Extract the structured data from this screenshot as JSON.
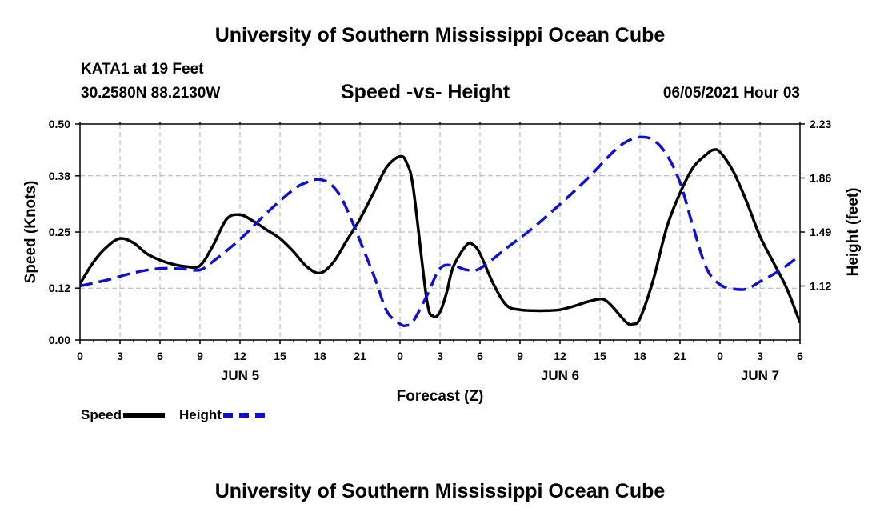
{
  "header": {
    "top_title": "University of Southern Mississippi Ocean Cube",
    "station_name": "KATA1 at 19 Feet",
    "station_coords": "30.2580N  88.2130W",
    "chart_title": "Speed -vs- Height",
    "date": "06/05/2021 Hour 03"
  },
  "footer": {
    "bottom_title": "University of Southern Mississippi Ocean Cube"
  },
  "legend": {
    "speed_label": "Speed",
    "height_label": "Height"
  },
  "colors": {
    "speed": "#000000",
    "height": "#1010d0",
    "grid": "#b0b0b0"
  },
  "chart_data": {
    "type": "line",
    "title": "Speed -vs- Height",
    "xlabel": "Forecast (Z)",
    "ylabel": "Speed (Knots)",
    "y2label": "Height (feet)",
    "xlim": [
      0,
      54
    ],
    "ylim": [
      0,
      0.5
    ],
    "y2lim": [
      0.75,
      2.23
    ],
    "y_ticks": [
      "0.00",
      "0.12",
      "0.25",
      "0.38",
      "0.50"
    ],
    "y2_ticks": [
      "1.12",
      "1.49",
      "1.86",
      "2.23"
    ],
    "y2_tick_values": [
      1.12,
      1.49,
      1.86,
      2.23
    ],
    "x_ticks": [
      {
        "x": 0,
        "label": "0"
      },
      {
        "x": 3,
        "label": "3"
      },
      {
        "x": 6,
        "label": "6"
      },
      {
        "x": 9,
        "label": "9"
      },
      {
        "x": 12,
        "label": "12"
      },
      {
        "x": 15,
        "label": "15"
      },
      {
        "x": 18,
        "label": "18"
      },
      {
        "x": 21,
        "label": "21"
      },
      {
        "x": 24,
        "label": "0"
      },
      {
        "x": 27,
        "label": "3"
      },
      {
        "x": 30,
        "label": "6"
      },
      {
        "x": 33,
        "label": "9"
      },
      {
        "x": 36,
        "label": "12"
      },
      {
        "x": 39,
        "label": "15"
      },
      {
        "x": 42,
        "label": "18"
      },
      {
        "x": 45,
        "label": "21"
      },
      {
        "x": 48,
        "label": "0"
      },
      {
        "x": 51,
        "label": "3"
      },
      {
        "x": 54,
        "label": "6"
      }
    ],
    "day_labels": [
      {
        "x": 12,
        "label": "JUN 5"
      },
      {
        "x": 36,
        "label": "JUN 6"
      },
      {
        "x": 51,
        "label": "JUN 7"
      }
    ],
    "series": [
      {
        "name": "Speed",
        "axis": "left",
        "style": "solid",
        "x": [
          0,
          1,
          2,
          3,
          4,
          5,
          6,
          7,
          8,
          9,
          10,
          11,
          12,
          13,
          14,
          15,
          16,
          17,
          18,
          19,
          20,
          21,
          22,
          23,
          24,
          24.5,
          25,
          26,
          26.5,
          27,
          27.5,
          28,
          29,
          29.5,
          30,
          31,
          32,
          33,
          34,
          35,
          36,
          37,
          38,
          39,
          39.5,
          40,
          41,
          41.5,
          42,
          43,
          44,
          45,
          46,
          47,
          47.5,
          48,
          49,
          50,
          51,
          52,
          53,
          54
        ],
        "values": [
          0.13,
          0.18,
          0.215,
          0.235,
          0.225,
          0.2,
          0.185,
          0.175,
          0.17,
          0.172,
          0.22,
          0.28,
          0.29,
          0.275,
          0.255,
          0.235,
          0.205,
          0.17,
          0.155,
          0.18,
          0.23,
          0.28,
          0.34,
          0.4,
          0.425,
          0.41,
          0.35,
          0.095,
          0.055,
          0.065,
          0.11,
          0.17,
          0.22,
          0.22,
          0.2,
          0.13,
          0.08,
          0.07,
          0.068,
          0.068,
          0.07,
          0.078,
          0.088,
          0.095,
          0.09,
          0.075,
          0.04,
          0.037,
          0.05,
          0.14,
          0.26,
          0.34,
          0.4,
          0.43,
          0.44,
          0.435,
          0.39,
          0.32,
          0.24,
          0.18,
          0.12,
          0.04
        ]
      },
      {
        "name": "Height",
        "axis": "right",
        "style": "dashed",
        "x": [
          0,
          2,
          4,
          6,
          8,
          9,
          10,
          12,
          14,
          16,
          17,
          18,
          19,
          20,
          22,
          23,
          24,
          24.5,
          25,
          26,
          27,
          28,
          29,
          30,
          32,
          34,
          36,
          38,
          40,
          41,
          42,
          43,
          44,
          45,
          46,
          47,
          48,
          49,
          50,
          51,
          52,
          53,
          54
        ],
        "values": [
          1.12,
          1.16,
          1.21,
          1.24,
          1.235,
          1.23,
          1.29,
          1.44,
          1.62,
          1.78,
          1.83,
          1.85,
          1.8,
          1.65,
          1.2,
          0.95,
          0.86,
          0.85,
          0.88,
          1.05,
          1.24,
          1.26,
          1.23,
          1.24,
          1.38,
          1.52,
          1.68,
          1.85,
          2.04,
          2.11,
          2.14,
          2.12,
          2.02,
          1.83,
          1.52,
          1.24,
          1.13,
          1.1,
          1.1,
          1.15,
          1.2,
          1.26,
          1.33
        ]
      }
    ]
  }
}
